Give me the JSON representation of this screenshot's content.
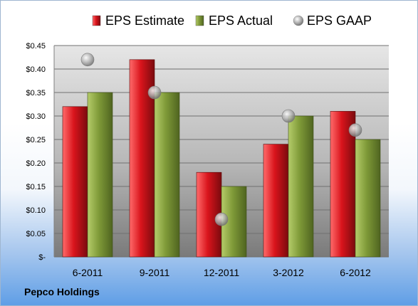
{
  "company": "Pepco Holdings",
  "chart_data": {
    "type": "bar",
    "categories": [
      "6-2011",
      "9-2011",
      "12-2011",
      "3-2012",
      "6-2012"
    ],
    "series": [
      {
        "name": "EPS Estimate",
        "kind": "bar",
        "color": "#c8141c",
        "values": [
          0.32,
          0.42,
          0.18,
          0.24,
          0.31
        ]
      },
      {
        "name": "EPS Actual",
        "kind": "bar",
        "color": "#7f9a38",
        "values": [
          0.35,
          0.35,
          0.15,
          0.3,
          0.25
        ]
      },
      {
        "name": "EPS GAAP",
        "kind": "point",
        "color": "#a9a9a9",
        "values": [
          0.42,
          0.35,
          0.08,
          0.3,
          0.27
        ]
      }
    ],
    "yticks": [
      0,
      0.05,
      0.1,
      0.15,
      0.2,
      0.25,
      0.3,
      0.35,
      0.4,
      0.45
    ],
    "ytick_labels": [
      "$-",
      "$0.05",
      "$0.10",
      "$0.15",
      "$0.20",
      "$0.25",
      "$0.30",
      "$0.35",
      "$0.40",
      "$0.45"
    ],
    "ylim": [
      0,
      0.45
    ],
    "grid": true,
    "legend": "top"
  }
}
